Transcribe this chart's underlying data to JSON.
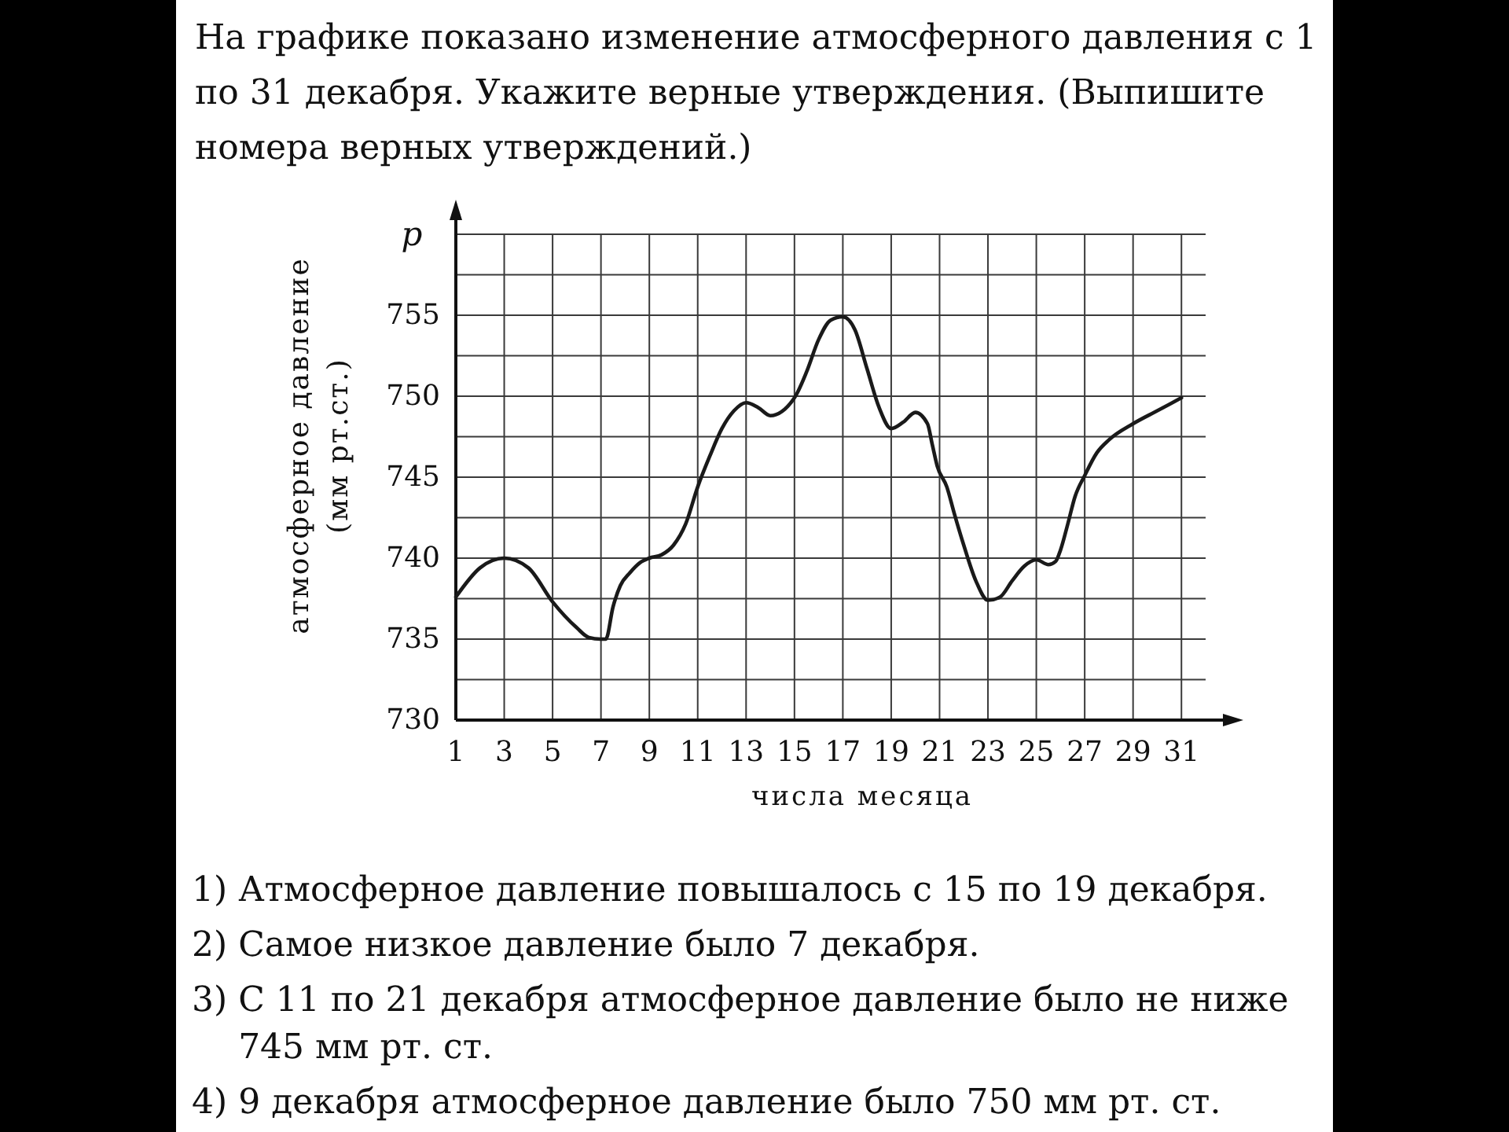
{
  "chart_data": {
    "type": "line",
    "title": "На графике показано изменение атмосферного давления с 1 по 31 декабря. Укажите верные утверждения. (Выпишите номера верных утверждений.)",
    "xlabel": "числа месяца",
    "ylabel": "атмосферное давление (мм рт.ст.)",
    "annotations": [
      "p",
      "1) Атмосферное давление повышалось с 15 по 19 декабря.",
      "2) Самое низкое давление было 7 декабря.",
      "3) С 11 по 21 декабря атмосферное давление было не ниже 745 мм рт. ст.",
      "4) 9 декабря атмосферное давление было 750 мм рт. ст."
    ],
    "x": [
      1,
      2,
      3,
      4,
      5,
      6,
      6.5,
      7,
      7.2,
      7.5,
      7.8,
      8.2,
      8.6,
      9,
      9.5,
      10,
      10.5,
      11,
      11.5,
      12,
      12.5,
      13,
      13.5,
      14,
      15,
      15.5,
      16,
      16.5,
      17,
      17.5,
      18,
      18.5,
      19,
      19.5,
      20,
      20.5,
      20.7,
      20.9,
      21.3,
      21.6,
      22,
      22.5,
      23,
      23.5,
      24,
      24.5,
      25,
      25.5,
      25.8,
      26,
      26.3,
      26.6,
      27,
      27.5,
      28,
      29,
      30,
      31
    ],
    "series": [
      {
        "color": "#1a1a1a",
        "values": [
          737.6,
          739.4,
          740,
          739.4,
          737.3,
          735.7,
          735.1,
          735,
          735,
          737,
          738.3,
          739.1,
          739.7,
          740,
          740.2,
          740.8,
          742.1,
          744.4,
          746.3,
          748,
          749.1,
          749.6,
          749.3,
          748.8,
          749.9,
          751.5,
          753.5,
          754.7,
          754.9,
          754.1,
          751.7,
          749.3,
          748,
          748.4,
          749,
          748.3,
          747,
          745.7,
          744.4,
          742.8,
          740.8,
          738.6,
          737.4,
          737.6,
          738.6,
          739.5,
          739.9,
          739.6,
          739.8,
          740.5,
          742.1,
          743.8,
          745.1,
          746.5,
          747.3,
          748.3,
          749.1,
          749.9
        ]
      }
    ],
    "xlim": [
      1,
      32
    ],
    "ylim": [
      730,
      760
    ],
    "xticks": [
      1,
      3,
      5,
      7,
      9,
      11,
      13,
      15,
      17,
      19,
      21,
      23,
      25,
      27,
      29,
      31
    ],
    "yticks": [
      730,
      {
        "value": 732.5,
        "label": null
      },
      735,
      {
        "value": 737.5,
        "label": null
      },
      740,
      {
        "value": 742.5,
        "label": null
      },
      745,
      {
        "value": 747.5,
        "label": null
      },
      750,
      {
        "value": 752.5,
        "label": null
      },
      755,
      {
        "value": 757.5,
        "label": null
      },
      {
        "value": 760,
        "label": null
      }
    ],
    "grid": true
  }
}
